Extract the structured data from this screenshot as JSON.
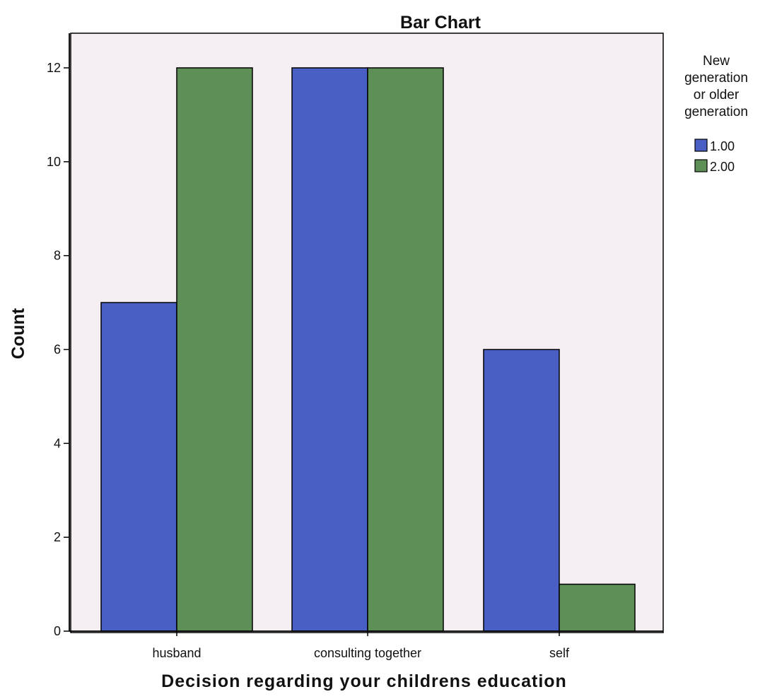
{
  "chart_data": {
    "type": "bar",
    "title": "Bar Chart",
    "xlabel": "Decision regarding your childrens education",
    "ylabel": "Count",
    "categories": [
      "husband",
      "consulting together",
      "self"
    ],
    "series": [
      {
        "name": "1.00",
        "values": [
          7,
          12,
          6
        ],
        "color": "#4a5fc4"
      },
      {
        "name": "2.00",
        "values": [
          12,
          12,
          1
        ],
        "color": "#5e8f56"
      }
    ],
    "ylim": [
      0,
      13
    ],
    "yticks": [
      0,
      2,
      4,
      6,
      8,
      10,
      12
    ],
    "grid": false,
    "legend": {
      "title_lines": [
        "New",
        "generation",
        "or older",
        "generation"
      ],
      "placement": "right"
    },
    "colors": {
      "plot_background": "#f5eef3",
      "bar_outline": "#000000"
    }
  }
}
